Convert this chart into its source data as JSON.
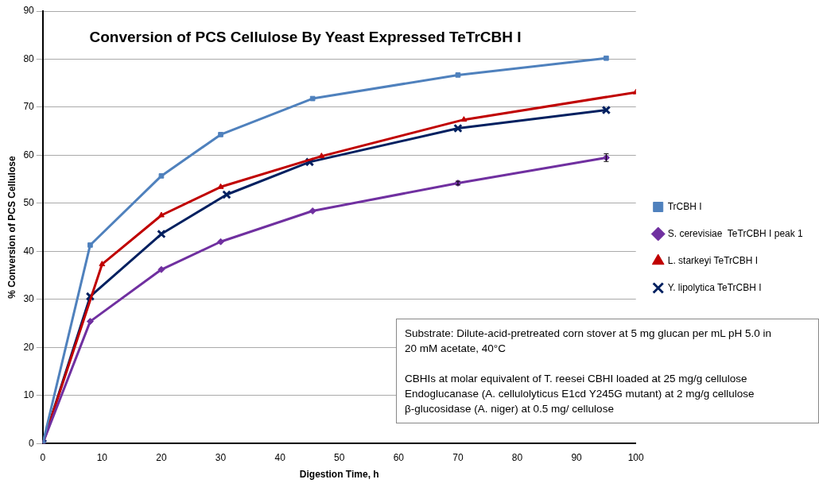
{
  "chart_data": {
    "type": "line",
    "title": "Conversion of PCS Cellulose By Yeast Expressed TeTrCBH I",
    "xlabel": "Digestion Time, h",
    "ylabel": "% Conversion of PCS Cellulose",
    "xlim": [
      0,
      100
    ],
    "xticks": [
      0,
      10,
      20,
      30,
      40,
      50,
      60,
      70,
      80,
      90,
      100
    ],
    "ylim": [
      0,
      90
    ],
    "yticks": [
      0,
      10,
      20,
      30,
      40,
      50,
      60,
      70,
      80,
      90
    ],
    "grid": "y",
    "legend": "right",
    "line_style": "solid",
    "series": [
      {
        "name": "TrCBH I",
        "color": "#4f81bd",
        "marker": "square",
        "x": [
          0,
          8,
          20,
          30,
          45.5,
          70,
          95
        ],
        "values": [
          0,
          41.3,
          55.7,
          64.3,
          71.8,
          76.7,
          80.2
        ]
      },
      {
        "name": "S. cerevisiae  TeTrCBH I peak 1",
        "color": "#7030a0",
        "marker": "diamond",
        "x": [
          0,
          8,
          20,
          30,
          45.5,
          70,
          95
        ],
        "values": [
          0,
          25.4,
          36.2,
          42,
          48.4,
          54.2,
          59.5
        ],
        "errors": [
          null,
          null,
          null,
          null,
          null,
          0.4,
          0.8
        ]
      },
      {
        "name": "L. starkeyi TeTrCBH I",
        "color": "#c00000",
        "marker": "triangle",
        "x": [
          0,
          10,
          20,
          30,
          47,
          71,
          100
        ],
        "values": [
          0,
          37.3,
          47.5,
          53.4,
          59.8,
          67.4,
          73.1
        ]
      },
      {
        "name": "Y. lipolytica TeTrCBH I",
        "color": "#002060",
        "marker": "cross",
        "x": [
          0,
          8,
          20,
          31,
          45,
          70,
          95
        ],
        "values": [
          0,
          30.6,
          43.6,
          51.8,
          58.6,
          65.6,
          69.4
        ]
      }
    ],
    "annotations": [
      "Substrate: Dilute-acid-pretreated corn stover at 5 mg glucan per mL pH 5.0 in 20 mM acetate, 40°C",
      "CBHIs at molar equivalent of  T. reesei CBHI  loaded at 25 mg/g cellulose",
      "Endoglucanase (A. cellulolyticus E1cd Y245G mutant)  at 2 mg/g cellulose",
      "β-glucosidase (A. niger) at  0.5 mg/ cellulose"
    ]
  }
}
